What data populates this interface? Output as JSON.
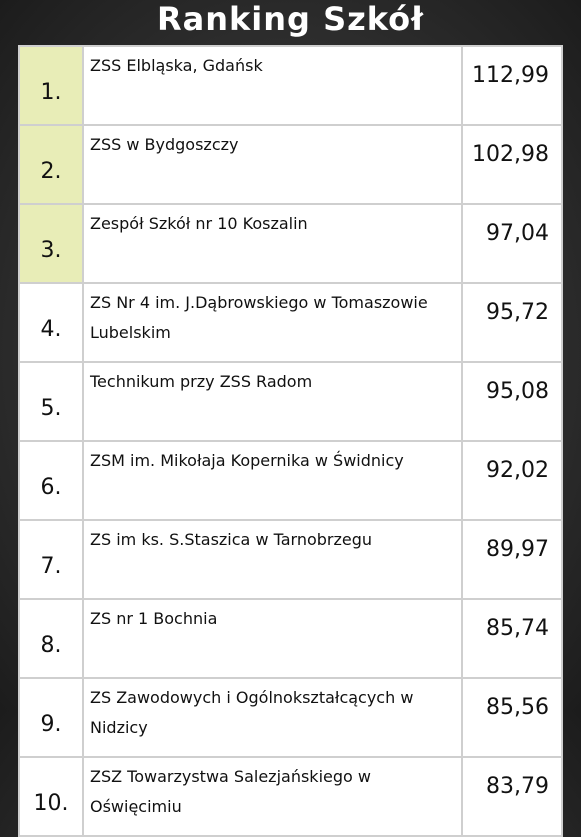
{
  "header": {
    "title": "Ranking Szkół"
  },
  "table": {
    "rows": [
      [
        "1.",
        "ZSS Elbląska, Gdańsk",
        "112,99"
      ],
      [
        "2.",
        "ZSS w Bydgoszczy",
        "102,98"
      ],
      [
        "3.",
        "Zespół Szkół nr 10 Koszalin",
        "97,04"
      ],
      [
        "4.",
        "ZS Nr 4 im. J.Dąbrowskiego w Tomaszowie Lubelskim",
        "95,72"
      ],
      [
        "5.",
        "Technikum przy ZSS Radom",
        "95,08"
      ],
      [
        "6.",
        "ZSM im. Mikołaja Kopernika w Świdnicy",
        "92,02"
      ],
      [
        "7.",
        "ZS im ks. S.Staszica w Tarnobrzegu",
        "89,97"
      ],
      [
        "8.",
        "ZS nr 1 Bochnia",
        "85,74"
      ],
      [
        "9.",
        "ZS Zawodowych i Ogólnokształcących w Nidzicy",
        "85,56"
      ],
      [
        "10.",
        "ZSZ Towarzystwa Salezjańskiego w Oświęcimiu",
        "83,79"
      ]
    ]
  }
}
